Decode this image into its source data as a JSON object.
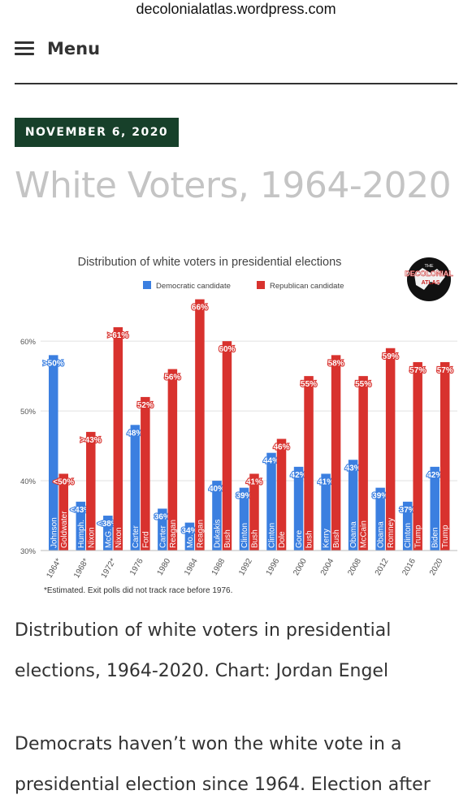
{
  "browser": {
    "url": "decolonialatlas.wordpress.com"
  },
  "nav": {
    "menu_label": "Menu"
  },
  "post": {
    "date": "NOVEMBER 6, 2020",
    "title": "White Voters, 1964-2020",
    "caption": "Distribution of white voters in presidential elections, 1964-2020. Chart: Jordan Engel",
    "paragraph": "Democrats haven’t won the white vote in a presidential election since 1964. Election after"
  },
  "chart_data": {
    "type": "bar",
    "title": "Distribution of white voters in presidential elections",
    "logo_text": [
      "THE",
      "DECOLONIAL",
      "ATLAS"
    ],
    "footnote": "*Estimated. Exit polls did not track race before 1976.",
    "categories": [
      "1964*",
      "1968*",
      "1972*",
      "1976",
      "1980",
      "1984",
      "1988",
      "1992",
      "1996",
      "2000",
      "2004",
      "2008",
      "2012",
      "2016",
      "2020"
    ],
    "series": [
      {
        "name": "Democratic candidate",
        "color": "#3b7fe0",
        "values": [
          58,
          37,
          35,
          48,
          36,
          34,
          40,
          39,
          44,
          42,
          41,
          43,
          39,
          37,
          42
        ],
        "labels": [
          ">50%",
          "<43%",
          "<38%",
          "48%",
          "36%",
          "34%",
          "40%",
          "39%",
          "44%",
          "42%",
          "41%",
          "43%",
          "39%",
          "37%",
          "42%"
        ],
        "candidates": [
          "Johnson",
          "Humph.",
          "McG.",
          "Carter",
          "Carter",
          "Mo.",
          "Dukakis",
          "Clinton",
          "Clinton",
          "Gore",
          "Kerry",
          "Obama",
          "Obama",
          "Clinton",
          "Biden"
        ]
      },
      {
        "name": "Republican candidate",
        "color": "#d8322e",
        "values": [
          41,
          47,
          62,
          52,
          56,
          66,
          60,
          41,
          46,
          55,
          58,
          55,
          59,
          57,
          57
        ],
        "labels": [
          "<50%",
          ">43%",
          ">61%",
          "52%",
          "56%",
          "66%",
          "60%",
          "41%",
          "46%",
          "55%",
          "58%",
          "55%",
          "59%",
          "57%",
          "57%"
        ],
        "candidates": [
          "Goldwater",
          "Nixon",
          "Nixon",
          "Ford",
          "Reagan",
          "Reagan",
          "Bush",
          "Bush",
          "Dole",
          "bush",
          "Bush",
          "McCain",
          "Romney",
          "Trump",
          "Trump"
        ]
      }
    ],
    "y_ticks": [
      30,
      40,
      50,
      60
    ],
    "y_tick_labels": [
      "30%",
      "40%",
      "50%",
      "60%"
    ],
    "ylim": [
      30,
      67
    ],
    "grid": true,
    "legend_position": "top-center"
  }
}
